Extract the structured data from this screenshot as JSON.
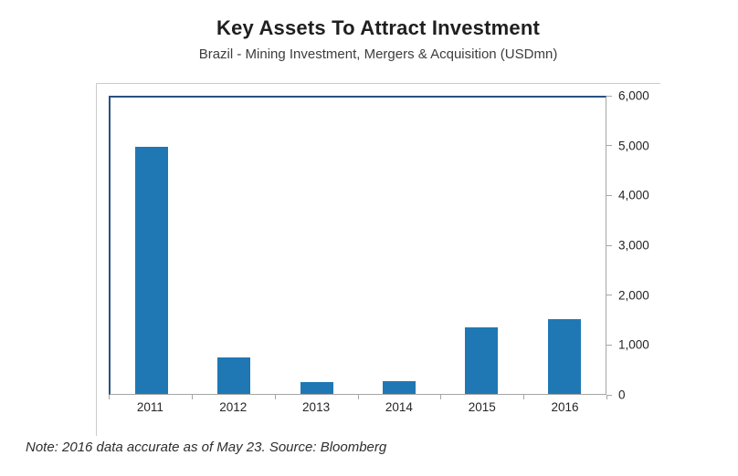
{
  "header": {
    "title": "Key Assets To Attract Investment",
    "subtitle": "Brazil - Mining Investment, Mergers & Acquisition (USDmn)"
  },
  "footer": {
    "note": "Note: 2016 data accurate as of May 23. Source: Bloomberg"
  },
  "chart_data": {
    "type": "bar",
    "title": "Key Assets To Attract Investment",
    "subtitle": "Brazil - Mining Investment, Mergers & Acquisition (USDmn)",
    "categories": [
      "2011",
      "2012",
      "2013",
      "2014",
      "2015",
      "2016"
    ],
    "values": [
      5000,
      730,
      240,
      255,
      1355,
      1520
    ],
    "xlabel": "",
    "ylabel": "",
    "ylim": [
      0,
      6000
    ],
    "ytick_interval": 1000,
    "ytick_labels": [
      "0",
      "1,000",
      "2,000",
      "3,000",
      "4,000",
      "5,000",
      "6,000"
    ],
    "yaxis_side": "right",
    "grid": false,
    "legend": false,
    "bar_color": "#1f78b4",
    "plot_border_color": "#2a5180",
    "axis_color": "#a6a6a6",
    "frame_color": "#cbcbcb"
  }
}
